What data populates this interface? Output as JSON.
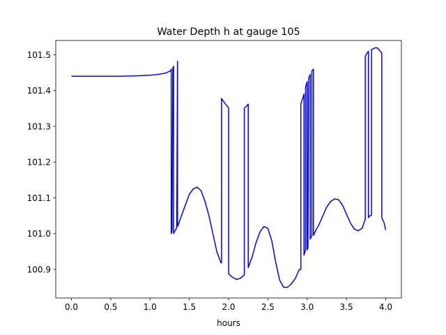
{
  "chart_data": {
    "type": "line",
    "title": "Water Depth h at gauge 105",
    "xlabel": "hours",
    "ylabel": "",
    "xlim": [
      -0.2,
      4.2
    ],
    "ylim": [
      100.82,
      101.54
    ],
    "x_ticks": [
      0.0,
      0.5,
      1.0,
      1.5,
      2.0,
      2.5,
      3.0,
      3.5,
      4.0
    ],
    "x_tick_labels": [
      "0.0",
      "0.5",
      "1.0",
      "1.5",
      "2.0",
      "2.5",
      "3.0",
      "3.5",
      "4.0"
    ],
    "y_ticks": [
      100.9,
      101.0,
      101.1,
      101.2,
      101.3,
      101.4,
      101.5
    ],
    "y_tick_labels": [
      "100.9",
      "101.0",
      "101.1",
      "101.2",
      "101.3",
      "101.4",
      "101.5"
    ],
    "grid": false,
    "legend": "none",
    "series": [
      {
        "color": "#0000ff",
        "x": [
          0.0,
          0.2,
          0.4,
          0.6,
          0.8,
          1.0,
          1.1,
          1.2,
          1.26,
          1.27,
          1.27,
          1.28,
          1.29,
          1.3,
          1.3,
          1.31,
          1.33,
          1.34,
          1.35,
          1.35,
          1.36,
          1.4,
          1.45,
          1.5,
          1.55,
          1.6,
          1.65,
          1.7,
          1.75,
          1.8,
          1.85,
          1.9,
          1.91,
          1.91,
          1.95,
          2.0,
          2.0,
          2.05,
          2.1,
          2.15,
          2.2,
          2.2,
          2.25,
          2.25,
          2.3,
          2.35,
          2.4,
          2.45,
          2.5,
          2.55,
          2.6,
          2.65,
          2.7,
          2.75,
          2.8,
          2.85,
          2.9,
          2.92,
          2.92,
          2.96,
          2.96,
          2.98,
          2.98,
          2.99,
          3.0,
          3.0,
          3.01,
          3.02,
          3.03,
          3.04,
          3.04,
          3.06,
          3.06,
          3.08,
          3.08,
          3.1,
          3.15,
          3.2,
          3.25,
          3.3,
          3.35,
          3.4,
          3.45,
          3.5,
          3.55,
          3.6,
          3.65,
          3.7,
          3.74,
          3.74,
          3.75,
          3.78,
          3.78,
          3.8,
          3.82,
          3.82,
          3.83,
          3.85,
          3.88,
          3.9,
          3.93,
          3.95,
          3.95,
          3.98,
          4.0
        ],
        "y": [
          101.44,
          101.44,
          101.44,
          101.44,
          101.441,
          101.443,
          101.445,
          101.449,
          101.455,
          101.46,
          101.0,
          101.01,
          101.463,
          101.468,
          101.0,
          101.005,
          101.012,
          101.018,
          101.482,
          101.02,
          101.025,
          101.05,
          101.08,
          101.11,
          101.125,
          101.13,
          101.12,
          101.09,
          101.05,
          101.0,
          100.95,
          100.92,
          100.918,
          101.378,
          101.365,
          101.352,
          100.888,
          100.878,
          100.872,
          100.875,
          100.885,
          101.35,
          101.362,
          100.905,
          100.935,
          100.975,
          101.005,
          101.02,
          101.015,
          100.98,
          100.92,
          100.87,
          100.85,
          100.85,
          100.86,
          100.875,
          100.9,
          100.9,
          101.362,
          101.39,
          100.94,
          100.955,
          101.41,
          101.418,
          101.425,
          100.955,
          100.96,
          101.435,
          101.44,
          101.445,
          100.985,
          100.995,
          101.455,
          101.46,
          100.995,
          101.005,
          101.025,
          101.05,
          101.075,
          101.09,
          101.097,
          101.095,
          101.08,
          101.055,
          101.03,
          101.013,
          101.008,
          101.015,
          101.04,
          101.495,
          101.5,
          101.51,
          101.045,
          101.05,
          101.052,
          101.515,
          101.515,
          101.518,
          101.52,
          101.518,
          101.51,
          101.505,
          101.045,
          101.03,
          101.01
        ]
      }
    ]
  }
}
